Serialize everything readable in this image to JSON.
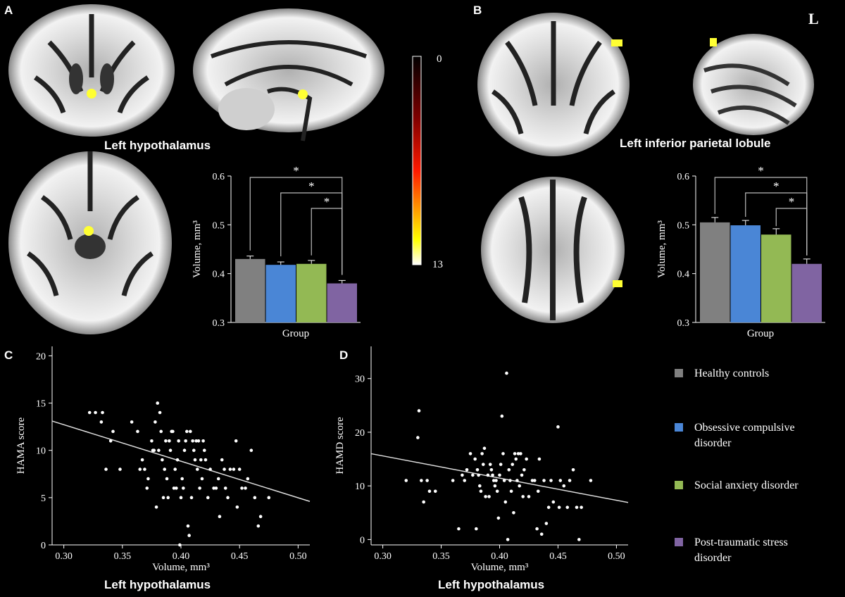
{
  "panels": {
    "A": {
      "letter": "A",
      "region": "Left hypothalamus"
    },
    "B": {
      "letter": "B",
      "region": "Left inferior parietal lobule",
      "side": "L"
    },
    "C": {
      "letter": "C",
      "region": "Left hypothalamus"
    },
    "D": {
      "letter": "D",
      "region": "Left hypothalamus"
    }
  },
  "colorbar": {
    "min_label": "0",
    "max_label": "13"
  },
  "legend": [
    {
      "label_lines": [
        "Healthy controls"
      ],
      "color": "#808080"
    },
    {
      "label_lines": [
        "Obsessive compulsive",
        "disorder"
      ],
      "color": "#4a86d6"
    },
    {
      "label_lines": [
        "Social anxiety disorder"
      ],
      "color": "#93b954"
    },
    {
      "label_lines": [
        "Post-traumatic stress",
        "disorder"
      ],
      "color": "#8064a2"
    }
  ],
  "chart_data": [
    {
      "id": "bar-A",
      "type": "bar",
      "xlabel": "Group",
      "ylabel": "Volume, mm³",
      "ylim": [
        0.3,
        0.6
      ],
      "yticks": [
        "0.3",
        "0.4",
        "0.5",
        "0.6"
      ],
      "categories": [
        "Healthy controls",
        "Obsessive compulsive disorder",
        "Social anxiety disorder",
        "Post-traumatic stress disorder"
      ],
      "values": [
        0.43,
        0.418,
        0.42,
        0.38
      ],
      "errors": [
        0.006,
        0.006,
        0.007,
        0.006
      ],
      "significance": [
        {
          "from": 0,
          "to": 3,
          "label": "*"
        },
        {
          "from": 1,
          "to": 3,
          "label": "*"
        },
        {
          "from": 2,
          "to": 3,
          "label": "*"
        }
      ]
    },
    {
      "id": "bar-B",
      "type": "bar",
      "xlabel": "Group",
      "ylabel": "Volume, mm³",
      "ylim": [
        0.3,
        0.6
      ],
      "yticks": [
        "0.3",
        "0.4",
        "0.5",
        "0.6"
      ],
      "categories": [
        "Healthy controls",
        "Obsessive compulsive disorder",
        "Social anxiety disorder",
        "Post-traumatic stress disorder"
      ],
      "values": [
        0.505,
        0.499,
        0.48,
        0.42
      ],
      "errors": [
        0.01,
        0.01,
        0.012,
        0.01
      ],
      "significance": [
        {
          "from": 0,
          "to": 3,
          "label": "*"
        },
        {
          "from": 1,
          "to": 3,
          "label": "*"
        },
        {
          "from": 2,
          "to": 3,
          "label": "*"
        }
      ]
    },
    {
      "id": "scatter-C",
      "type": "scatter",
      "xlabel": "Volume, mm³",
      "ylabel": "HAMA score",
      "xlim": [
        0.29,
        0.51
      ],
      "ylim": [
        0,
        21
      ],
      "xticks": [
        "0.30",
        "0.35",
        "0.40",
        "0.45",
        "0.50"
      ],
      "yticks": [
        "0",
        "5",
        "10",
        "15",
        "20"
      ],
      "points": [
        [
          0.322,
          14
        ],
        [
          0.327,
          14
        ],
        [
          0.333,
          14
        ],
        [
          0.332,
          13
        ],
        [
          0.336,
          8
        ],
        [
          0.34,
          11
        ],
        [
          0.342,
          12
        ],
        [
          0.348,
          8
        ],
        [
          0.358,
          13
        ],
        [
          0.363,
          12
        ],
        [
          0.365,
          8
        ],
        [
          0.367,
          9
        ],
        [
          0.369,
          8
        ],
        [
          0.371,
          6
        ],
        [
          0.372,
          7
        ],
        [
          0.375,
          11
        ],
        [
          0.376,
          10
        ],
        [
          0.377,
          10
        ],
        [
          0.378,
          13
        ],
        [
          0.379,
          4
        ],
        [
          0.38,
          15
        ],
        [
          0.381,
          10
        ],
        [
          0.382,
          14
        ],
        [
          0.383,
          12
        ],
        [
          0.384,
          9
        ],
        [
          0.385,
          5
        ],
        [
          0.386,
          8
        ],
        [
          0.387,
          11
        ],
        [
          0.388,
          7
        ],
        [
          0.389,
          5
        ],
        [
          0.39,
          11
        ],
        [
          0.391,
          10
        ],
        [
          0.392,
          12
        ],
        [
          0.393,
          12
        ],
        [
          0.394,
          6
        ],
        [
          0.395,
          8
        ],
        [
          0.396,
          6
        ],
        [
          0.397,
          9
        ],
        [
          0.398,
          11
        ],
        [
          0.399,
          0
        ],
        [
          0.4,
          5
        ],
        [
          0.401,
          7
        ],
        [
          0.402,
          6
        ],
        [
          0.403,
          10
        ],
        [
          0.404,
          11
        ],
        [
          0.405,
          12
        ],
        [
          0.406,
          2
        ],
        [
          0.407,
          1
        ],
        [
          0.408,
          12
        ],
        [
          0.409,
          5
        ],
        [
          0.41,
          11
        ],
        [
          0.411,
          10
        ],
        [
          0.412,
          9
        ],
        [
          0.413,
          11
        ],
        [
          0.414,
          8
        ],
        [
          0.415,
          11
        ],
        [
          0.416,
          6
        ],
        [
          0.417,
          9
        ],
        [
          0.418,
          7
        ],
        [
          0.419,
          11
        ],
        [
          0.42,
          10
        ],
        [
          0.421,
          9
        ],
        [
          0.423,
          5
        ],
        [
          0.425,
          8
        ],
        [
          0.428,
          6
        ],
        [
          0.43,
          6
        ],
        [
          0.432,
          7
        ],
        [
          0.433,
          3
        ],
        [
          0.435,
          9
        ],
        [
          0.437,
          8
        ],
        [
          0.438,
          6
        ],
        [
          0.44,
          5
        ],
        [
          0.442,
          8
        ],
        [
          0.445,
          8
        ],
        [
          0.447,
          11
        ],
        [
          0.448,
          4
        ],
        [
          0.45,
          8
        ],
        [
          0.452,
          6
        ],
        [
          0.455,
          6
        ],
        [
          0.457,
          7
        ],
        [
          0.46,
          10
        ],
        [
          0.463,
          5
        ],
        [
          0.466,
          2
        ],
        [
          0.468,
          3
        ],
        [
          0.475,
          5
        ]
      ],
      "fit_line": [
        [
          0.29,
          13.1
        ],
        [
          0.51,
          4.6
        ]
      ]
    },
    {
      "id": "scatter-D",
      "type": "scatter",
      "xlabel": "Volume, mm³",
      "ylabel": "HAMD score",
      "xlim": [
        0.29,
        0.51
      ],
      "ylim": [
        -1,
        36
      ],
      "xticks": [
        "0.30",
        "0.35",
        "0.40",
        "0.45",
        "0.50"
      ],
      "yticks": [
        "0",
        "10",
        "20",
        "30"
      ],
      "points": [
        [
          0.32,
          11
        ],
        [
          0.33,
          19
        ],
        [
          0.331,
          24
        ],
        [
          0.333,
          11
        ],
        [
          0.335,
          7
        ],
        [
          0.338,
          11
        ],
        [
          0.34,
          9
        ],
        [
          0.345,
          9
        ],
        [
          0.36,
          11
        ],
        [
          0.365,
          2
        ],
        [
          0.368,
          12
        ],
        [
          0.37,
          11
        ],
        [
          0.372,
          13
        ],
        [
          0.375,
          16
        ],
        [
          0.377,
          12
        ],
        [
          0.379,
          15
        ],
        [
          0.38,
          2
        ],
        [
          0.381,
          13
        ],
        [
          0.382,
          12
        ],
        [
          0.383,
          10
        ],
        [
          0.384,
          9
        ],
        [
          0.385,
          16
        ],
        [
          0.386,
          14
        ],
        [
          0.387,
          17
        ],
        [
          0.388,
          8
        ],
        [
          0.39,
          12
        ],
        [
          0.391,
          8
        ],
        [
          0.392,
          14
        ],
        [
          0.393,
          13
        ],
        [
          0.394,
          12
        ],
        [
          0.395,
          11
        ],
        [
          0.396,
          10
        ],
        [
          0.397,
          11
        ],
        [
          0.398,
          9
        ],
        [
          0.399,
          4
        ],
        [
          0.4,
          12
        ],
        [
          0.401,
          14
        ],
        [
          0.402,
          23
        ],
        [
          0.403,
          16
        ],
        [
          0.404,
          11
        ],
        [
          0.405,
          7
        ],
        [
          0.406,
          31
        ],
        [
          0.407,
          0
        ],
        [
          0.408,
          13
        ],
        [
          0.409,
          11
        ],
        [
          0.41,
          9
        ],
        [
          0.411,
          14
        ],
        [
          0.412,
          5
        ],
        [
          0.413,
          16
        ],
        [
          0.414,
          15
        ],
        [
          0.415,
          11
        ],
        [
          0.416,
          16
        ],
        [
          0.417,
          10
        ],
        [
          0.418,
          16
        ],
        [
          0.419,
          12
        ],
        [
          0.42,
          8
        ],
        [
          0.421,
          13
        ],
        [
          0.423,
          15
        ],
        [
          0.425,
          8
        ],
        [
          0.428,
          11
        ],
        [
          0.43,
          11
        ],
        [
          0.432,
          2
        ],
        [
          0.433,
          9
        ],
        [
          0.434,
          15
        ],
        [
          0.436,
          1
        ],
        [
          0.438,
          11
        ],
        [
          0.44,
          3
        ],
        [
          0.442,
          6
        ],
        [
          0.444,
          11
        ],
        [
          0.446,
          7
        ],
        [
          0.45,
          21
        ],
        [
          0.451,
          6
        ],
        [
          0.452,
          11
        ],
        [
          0.455,
          10
        ],
        [
          0.458,
          6
        ],
        [
          0.46,
          11
        ],
        [
          0.463,
          13
        ],
        [
          0.466,
          6
        ],
        [
          0.468,
          0
        ],
        [
          0.47,
          6
        ],
        [
          0.478,
          11
        ]
      ],
      "fit_line": [
        [
          0.29,
          16
        ],
        [
          0.51,
          6.9
        ]
      ]
    }
  ]
}
